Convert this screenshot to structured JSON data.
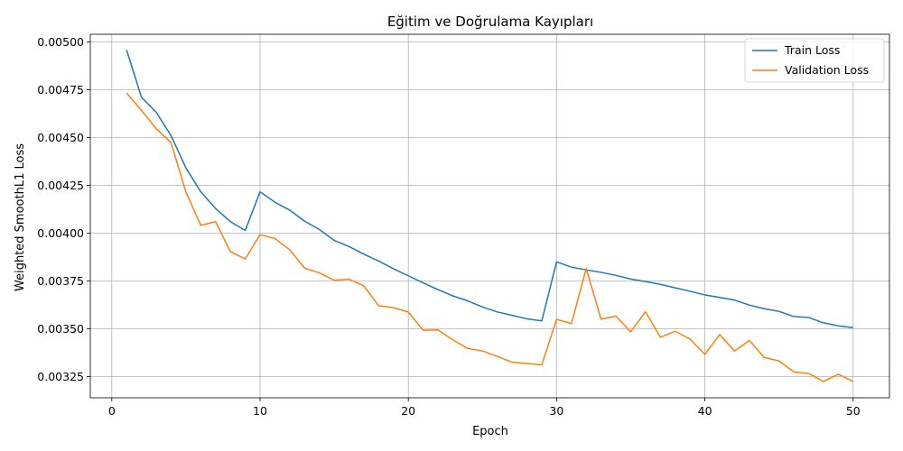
{
  "chart_data": {
    "type": "line",
    "title": "Eğitim ve Doğrulama Kayıpları",
    "xlabel": "Epoch",
    "ylabel": "Weighted SmoothL1 Loss",
    "xlim": [
      -1.45,
      52.45
    ],
    "ylim": [
      0.003139,
      0.00504
    ],
    "xticks": [
      0,
      10,
      20,
      30,
      40,
      50
    ],
    "yticks": [
      0.00325,
      0.0035,
      0.00375,
      0.004,
      0.00425,
      0.0045,
      0.00475,
      0.005
    ],
    "ytick_labels": [
      "0.00325",
      "0.00350",
      "0.00375",
      "0.00400",
      "0.00425",
      "0.00450",
      "0.00475",
      "0.00500"
    ],
    "grid": true,
    "legend_position": "top-right",
    "x": [
      1,
      2,
      3,
      4,
      5,
      6,
      7,
      8,
      9,
      10,
      11,
      12,
      13,
      14,
      15,
      16,
      17,
      18,
      19,
      20,
      21,
      22,
      23,
      24,
      25,
      26,
      27,
      28,
      29,
      30,
      31,
      32,
      33,
      34,
      35,
      36,
      37,
      38,
      39,
      40,
      41,
      42,
      43,
      44,
      45,
      46,
      47,
      48,
      49,
      50
    ],
    "series": [
      {
        "name": "Train Loss",
        "color": "#1f77b4",
        "values": [
          0.004958,
          0.004711,
          0.004632,
          0.004509,
          0.004341,
          0.004216,
          0.004129,
          0.00406,
          0.004014,
          0.004216,
          0.004162,
          0.00412,
          0.004063,
          0.004019,
          0.003962,
          0.00393,
          0.00389,
          0.003854,
          0.003814,
          0.003777,
          0.00374,
          0.003705,
          0.003672,
          0.003646,
          0.003614,
          0.003588,
          0.00357,
          0.003552,
          0.003541,
          0.00385,
          0.003822,
          0.003808,
          0.003795,
          0.003779,
          0.00376,
          0.003747,
          0.003732,
          0.003714,
          0.003696,
          0.003677,
          0.003664,
          0.00365,
          0.003624,
          0.003605,
          0.003591,
          0.003564,
          0.003559,
          0.003531,
          0.003515,
          0.003506
        ]
      },
      {
        "name": "Validation Loss",
        "color": "#ff7f0e",
        "values": [
          0.004733,
          0.004642,
          0.004546,
          0.004473,
          0.004215,
          0.004041,
          0.00406,
          0.003903,
          0.003865,
          0.003992,
          0.003972,
          0.003913,
          0.003817,
          0.003792,
          0.003754,
          0.003759,
          0.003724,
          0.00362,
          0.00361,
          0.003587,
          0.003492,
          0.003494,
          0.003442,
          0.003397,
          0.003384,
          0.003355,
          0.003325,
          0.003318,
          0.003311,
          0.003549,
          0.003527,
          0.003815,
          0.00355,
          0.003566,
          0.003484,
          0.003589,
          0.003455,
          0.003487,
          0.003446,
          0.003366,
          0.00347,
          0.003383,
          0.003439,
          0.00335,
          0.003332,
          0.003274,
          0.003266,
          0.003224,
          0.003262,
          0.003224
        ]
      }
    ]
  }
}
